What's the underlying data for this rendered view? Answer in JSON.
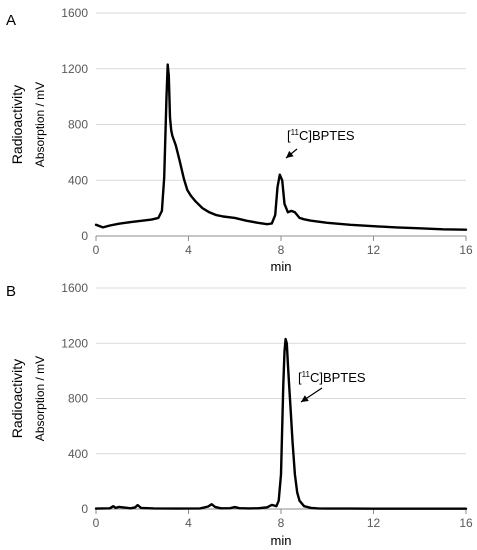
{
  "chart_data": [
    {
      "panel_label": "A",
      "type": "line",
      "ylabel_main": "Radioactivity",
      "ylabel_sub": "Absorption / mV",
      "xlabel": "min",
      "xlim": [
        0,
        16
      ],
      "ylim": [
        0,
        1600
      ],
      "x_ticks": [
        "0",
        "4",
        "8",
        "12",
        "16"
      ],
      "y_ticks": [
        "0",
        "400",
        "800",
        "1200",
        "1600"
      ],
      "grid": "horizontal",
      "annotation": {
        "pre": "[",
        "sup": "11",
        "post": "C]BPTES",
        "x": 8.0,
        "y": 440
      },
      "series": [
        {
          "x": [
            0,
            0.3,
            0.6,
            1.0,
            1.5,
            2.0,
            2.4,
            2.7,
            2.85,
            2.95,
            3.05,
            3.1,
            3.15,
            3.2,
            3.25,
            3.3,
            3.45,
            3.6,
            3.8,
            3.95,
            4.1,
            4.3,
            4.6,
            4.9,
            5.2,
            5.5,
            6.0,
            6.5,
            7.0,
            7.4,
            7.6,
            7.75,
            7.85,
            7.95,
            8.05,
            8.15,
            8.3,
            8.45,
            8.6,
            8.8,
            9.0,
            9.3,
            10.0,
            11.0,
            12.0,
            13.0,
            14.0,
            15.0,
            16.0
          ],
          "y": [
            80,
            62,
            75,
            88,
            100,
            110,
            118,
            130,
            180,
            420,
            1000,
            1230,
            1150,
            850,
            760,
            720,
            650,
            550,
            410,
            330,
            290,
            250,
            200,
            170,
            150,
            140,
            130,
            110,
            95,
            85,
            90,
            150,
            350,
            440,
            400,
            230,
            170,
            180,
            170,
            130,
            120,
            110,
            95,
            80,
            70,
            62,
            55,
            48,
            45
          ]
        }
      ]
    },
    {
      "panel_label": "B",
      "type": "line",
      "ylabel_main": "Radioactivity",
      "ylabel_sub": "Absorption / mV",
      "xlabel": "min",
      "xlim": [
        0,
        16
      ],
      "ylim": [
        0,
        1600
      ],
      "x_ticks": [
        "0",
        "4",
        "8",
        "12",
        "16"
      ],
      "y_ticks": [
        "0",
        "400",
        "800",
        "1200",
        "1600"
      ],
      "grid": "horizontal",
      "annotation": {
        "pre": "[",
        "sup": "11",
        "post": "C]BPTES",
        "x": 8.35,
        "y": 950
      },
      "series": [
        {
          "x": [
            0,
            0.6,
            0.75,
            0.85,
            1.0,
            1.5,
            1.7,
            1.8,
            1.95,
            2.5,
            3.5,
            4.5,
            4.85,
            5.0,
            5.15,
            5.4,
            5.8,
            6.0,
            6.2,
            6.6,
            7.0,
            7.4,
            7.6,
            7.8,
            7.9,
            8.0,
            8.1,
            8.15,
            8.2,
            8.25,
            8.3,
            8.35,
            8.4,
            8.5,
            8.6,
            8.7,
            8.8,
            9.0,
            9.3,
            9.6,
            10.0,
            11.0,
            12.0,
            13.0,
            14.0,
            15.0,
            16.0
          ],
          "y": [
            3,
            5,
            20,
            8,
            15,
            5,
            12,
            28,
            8,
            4,
            3,
            4,
            18,
            35,
            15,
            5,
            6,
            14,
            6,
            4,
            5,
            12,
            30,
            20,
            60,
            250,
            900,
            1140,
            1230,
            1200,
            1050,
            900,
            760,
            480,
            250,
            120,
            60,
            20,
            8,
            4,
            3,
            3,
            2,
            2,
            2,
            2,
            2
          ]
        }
      ]
    }
  ]
}
